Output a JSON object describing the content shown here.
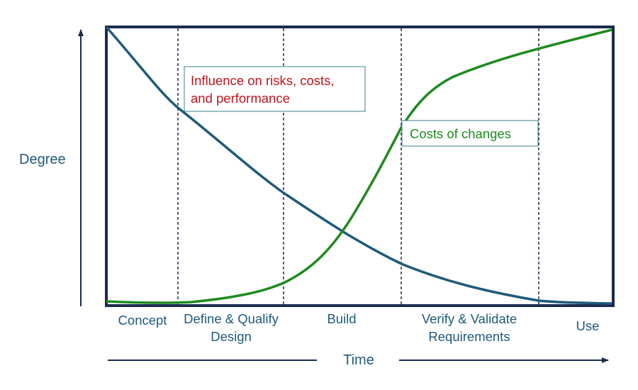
{
  "y_axis_label": "Degree",
  "x_axis_label": "Time",
  "phases": [
    "Concept",
    "Define & Qualify\nDesign",
    "Build",
    "Verify & Validate\nRequirements",
    "Use"
  ],
  "callouts": {
    "influence": "Influence on risks, costs,\nand performance",
    "costs": "Costs of changes"
  },
  "colors": {
    "frame": "#1b2b4f",
    "influence_curve": "#1f5a7a",
    "cost_curve": "#1e8a1e",
    "influence_text": "#c0141a",
    "cost_text": "#1e8a1e",
    "label_text": "#1f5a7a",
    "callout_border": "#3e7f87"
  }
}
